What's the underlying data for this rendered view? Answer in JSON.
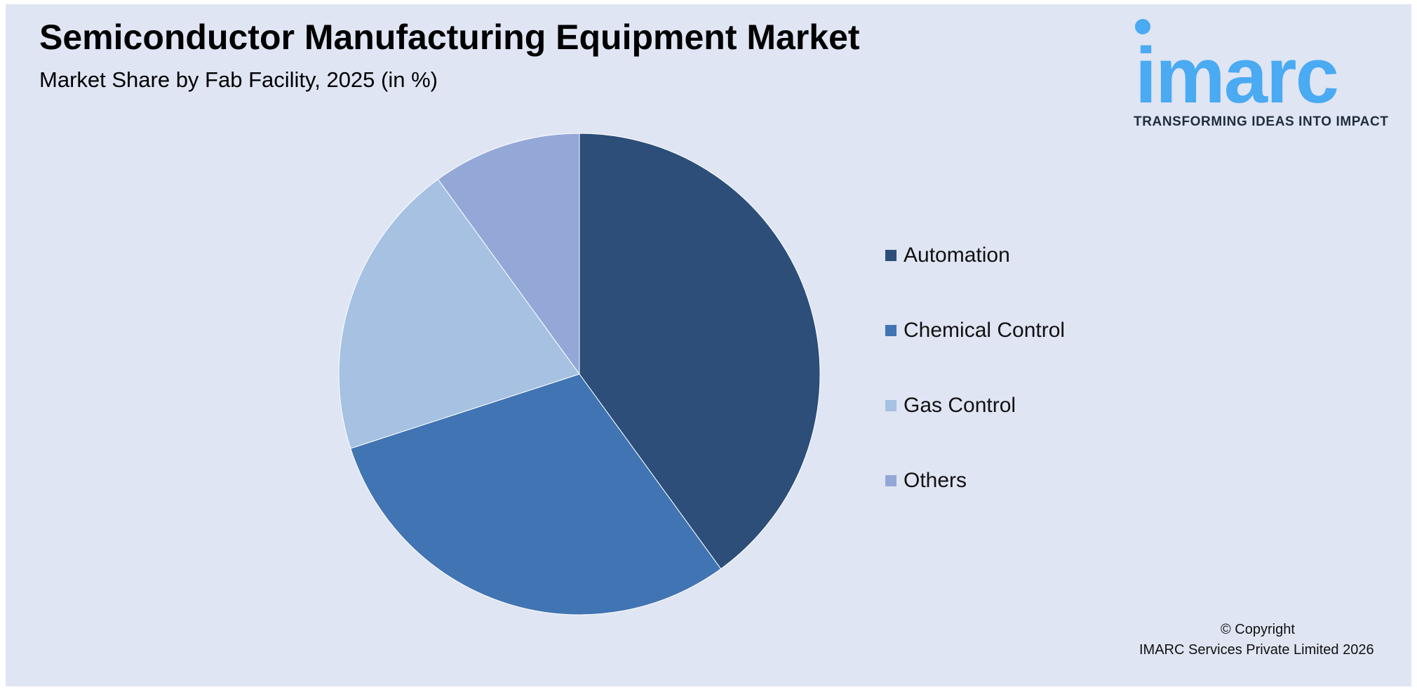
{
  "header": {
    "title": "Semiconductor Manufacturing Equipment Market",
    "subtitle": "Market Share by Fab Facility, 2025 (in %)"
  },
  "brand": {
    "name": "imarc",
    "tagline": "TRANSFORMING IDEAS INTO IMPACT",
    "color": "#4aaaf2"
  },
  "footer": {
    "copyright": "© Copyright",
    "organization": "IMARC Services Private Limited 2026"
  },
  "chart_data": {
    "type": "pie",
    "title": "Semiconductor Manufacturing Equipment Market",
    "subtitle": "Market Share by Fab Facility, 2025 (in %)",
    "legend_position": "right",
    "start_angle": "12 o'clock",
    "direction": "clockwise",
    "slices": [
      {
        "label": "Automation",
        "value": 40,
        "color": "#2c4e78"
      },
      {
        "label": "Chemical Control",
        "value": 30,
        "color": "#4174b2"
      },
      {
        "label": "Gas Control",
        "value": 20,
        "color": "#a6c1e2"
      },
      {
        "label": "Others",
        "value": 10,
        "color": "#94a8d8"
      }
    ]
  }
}
